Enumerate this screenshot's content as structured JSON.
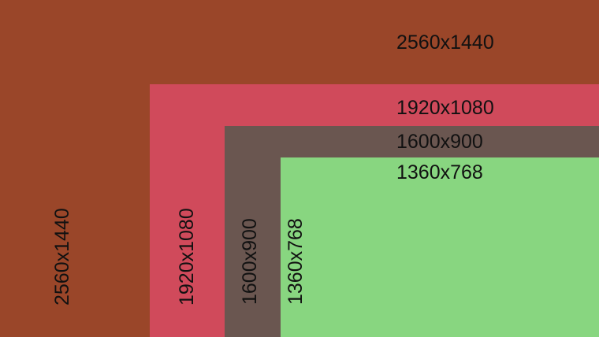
{
  "colors": {
    "r2560": "#9a4629",
    "r1920": "#d04a5b",
    "r1600": "#6a5650",
    "r1360": "#88d680"
  },
  "resolutions": [
    {
      "label": "2560x1440"
    },
    {
      "label": "1920x1080"
    },
    {
      "label": "1600x900"
    },
    {
      "label": "1360x768"
    }
  ]
}
